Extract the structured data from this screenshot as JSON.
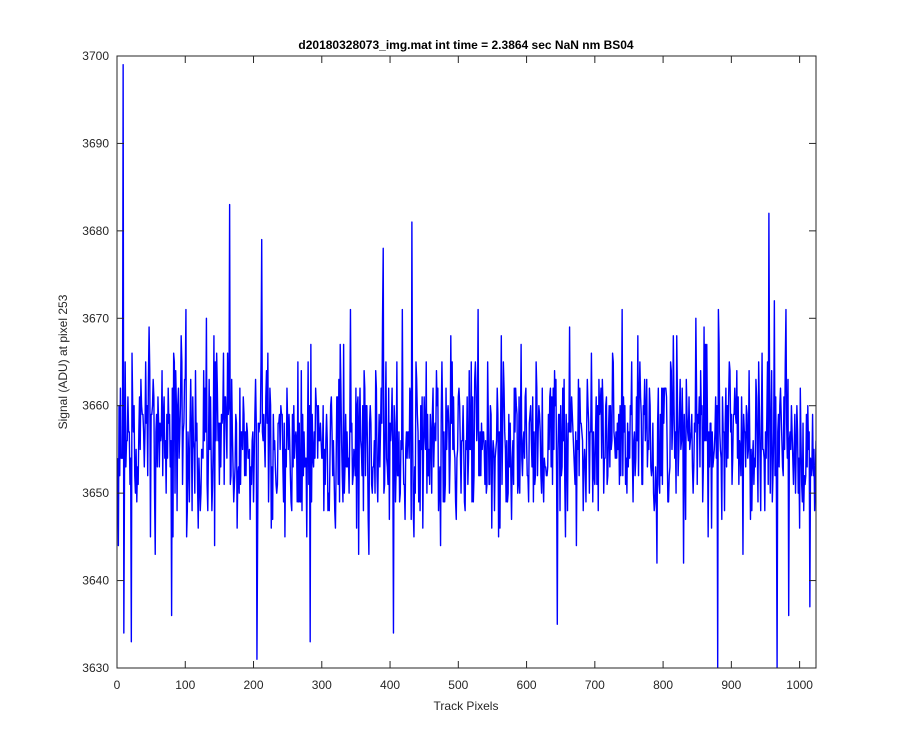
{
  "chart_data": {
    "type": "line",
    "title": "d20180328073_img.mat int time = 2.3864 sec  NaN nm BS04",
    "xlabel": "Track Pixels",
    "ylabel": "Signal (ADU) at pixel 253",
    "xlim": [
      0,
      1024
    ],
    "ylim": [
      3630,
      3700
    ],
    "xticks": [
      0,
      100,
      200,
      300,
      400,
      500,
      600,
      700,
      800,
      900,
      1000
    ],
    "yticks": [
      3630,
      3640,
      3650,
      3660,
      3670,
      3680,
      3690,
      3700
    ],
    "grid": false,
    "legend": "none",
    "series_color": "#0000ff",
    "series": [
      {
        "x_start": 1,
        "x_step": 1,
        "count": 1024,
        "mean": 3656,
        "approx_std": 5.5,
        "notable_points": [
          {
            "x": 9,
            "y": 3699
          },
          {
            "x": 9,
            "y": 3634
          },
          {
            "x": 21,
            "y": 3633
          },
          {
            "x": 80,
            "y": 3636
          },
          {
            "x": 165,
            "y": 3683
          },
          {
            "x": 205,
            "y": 3631
          },
          {
            "x": 212,
            "y": 3679
          },
          {
            "x": 283,
            "y": 3633
          },
          {
            "x": 390,
            "y": 3678
          },
          {
            "x": 405,
            "y": 3634
          },
          {
            "x": 432,
            "y": 3681
          },
          {
            "x": 645,
            "y": 3635
          },
          {
            "x": 880,
            "y": 3630
          },
          {
            "x": 955,
            "y": 3682
          },
          {
            "x": 967,
            "y": 3630
          },
          {
            "x": 1015,
            "y": 3637
          }
        ]
      }
    ]
  }
}
